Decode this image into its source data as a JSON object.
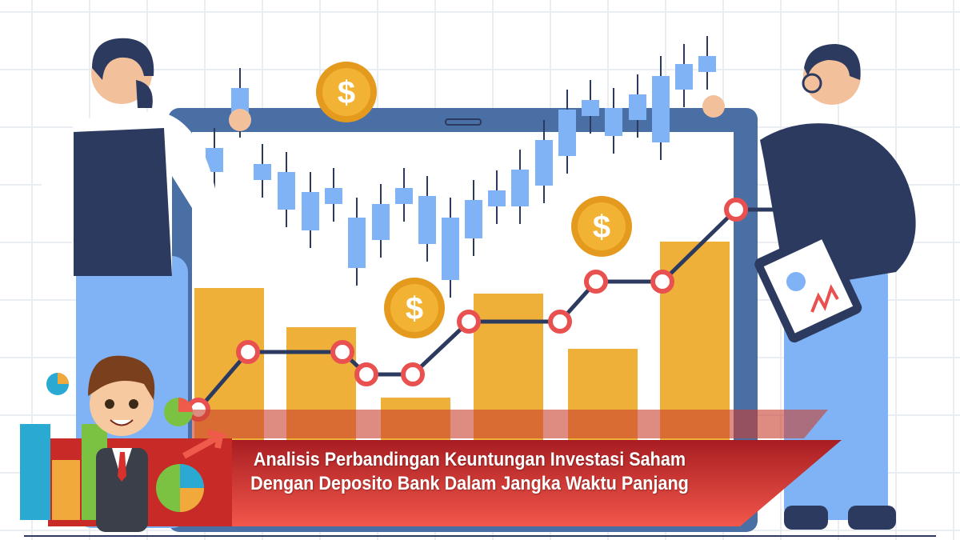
{
  "banner": {
    "line1": "Analisis Perbandingan Keuntungan Investasi Saham",
    "line2": "Dengan Deposito Bank Dalam Jangka Waktu Panjang"
  },
  "coin_symbol": "$",
  "colors": {
    "monitor": "#4a6fa5",
    "bar": "#efb03a",
    "candle": "#7fb3f5",
    "line": "#2b3a5e",
    "marker": "#e8514f",
    "banner": "#d8302c",
    "coin": "#f2b233"
  }
}
